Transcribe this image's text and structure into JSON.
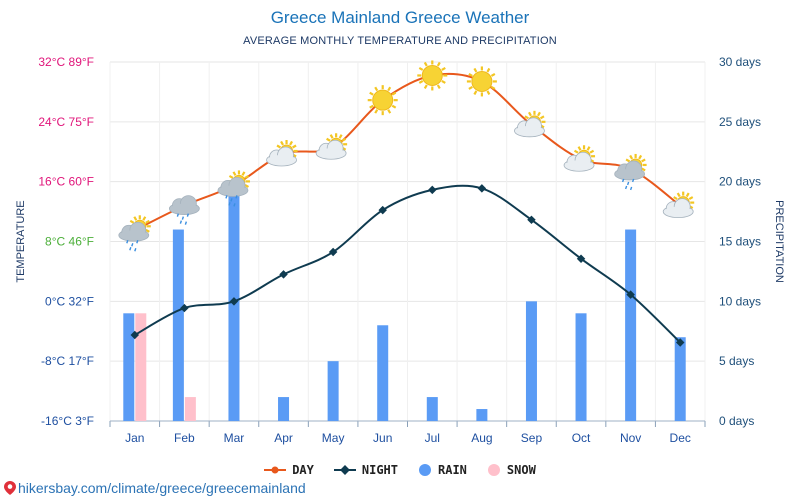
{
  "header": {
    "title": "Greece Mainland Greece Weather",
    "subtitle": "AVERAGE MONTHLY TEMPERATURE AND PRECIPITATION"
  },
  "chart_data": {
    "type": "line",
    "title": "Greece Mainland Greece Weather",
    "subtitle": "AVERAGE MONTHLY TEMPERATURE AND PRECIPITATION",
    "categories": [
      "Jan",
      "Feb",
      "Mar",
      "Apr",
      "May",
      "Jun",
      "Jul",
      "Aug",
      "Sep",
      "Oct",
      "Nov",
      "Dec"
    ],
    "left_axis": {
      "label": "TEMPERATURE",
      "min": -16,
      "max": 32,
      "ticks": [
        {
          "value": 32,
          "label": "32°C 89°F",
          "color": "#e0157a"
        },
        {
          "value": 24,
          "label": "24°C 75°F",
          "color": "#e0157a"
        },
        {
          "value": 16,
          "label": "16°C 60°F",
          "color": "#e0157a"
        },
        {
          "value": 8,
          "label": "8°C 46°F",
          "color": "#4caf3a"
        },
        {
          "value": 0,
          "label": "0°C 32°F",
          "color": "#1e4fa0"
        },
        {
          "value": -8,
          "label": "-8°C 17°F",
          "color": "#1e4fa0"
        },
        {
          "value": -16,
          "label": "-16°C 3°F",
          "color": "#1e4fa0"
        }
      ]
    },
    "right_axis": {
      "label": "PRECIPITATION",
      "min": 0,
      "max": 30,
      "ticks": [
        {
          "value": 30,
          "label": "30 days"
        },
        {
          "value": 25,
          "label": "25 days"
        },
        {
          "value": 20,
          "label": "20 days"
        },
        {
          "value": 15,
          "label": "15 days"
        },
        {
          "value": 10,
          "label": "10 days"
        },
        {
          "value": 5,
          "label": "5 days"
        },
        {
          "value": 0,
          "label": "0 days"
        }
      ]
    },
    "series": [
      {
        "name": "DAY",
        "kind": "line",
        "axis": "left",
        "color": "#e8581c",
        "values": [
          9.5,
          12.8,
          15.5,
          19.7,
          20.6,
          26.9,
          30.2,
          29.4,
          23.6,
          19.0,
          17.7,
          12.8
        ]
      },
      {
        "name": "NIGHT",
        "kind": "line",
        "axis": "left",
        "color": "#0f3b50",
        "values": [
          -4.5,
          -0.9,
          0,
          3.6,
          6.6,
          12.2,
          14.9,
          15.1,
          10.9,
          5.7,
          0.9,
          -5.5
        ]
      },
      {
        "name": "RAIN",
        "kind": "bar",
        "axis": "right",
        "color": "#5a9bf5",
        "values": [
          9,
          16,
          19,
          2,
          5,
          8,
          2,
          1,
          10,
          9,
          16,
          7
        ]
      },
      {
        "name": "SNOW",
        "kind": "bar",
        "axis": "right",
        "color": "#ffc0cb",
        "values": [
          9,
          2,
          0,
          0,
          0,
          0,
          0,
          0,
          0,
          0,
          0,
          0
        ]
      }
    ],
    "weather_icons": [
      "cloud-sun-rain",
      "cloud-rain",
      "cloud-sun-rain",
      "cloud-sun",
      "cloud-sun",
      "sun",
      "sun",
      "sun",
      "cloud-sun",
      "cloud-sun",
      "cloud-sun-rain",
      "cloud-sun"
    ]
  },
  "legend": [
    {
      "label": "DAY",
      "color": "#e8581c",
      "marker": "line"
    },
    {
      "label": "NIGHT",
      "color": "#0f3b50",
      "marker": "line"
    },
    {
      "label": "RAIN",
      "color": "#5a9bf5",
      "marker": "dot"
    },
    {
      "label": "SNOW",
      "color": "#ffc0cb",
      "marker": "dot"
    }
  ],
  "footer": {
    "url": "hikersbay.com/climate/greece/greecemainland"
  }
}
